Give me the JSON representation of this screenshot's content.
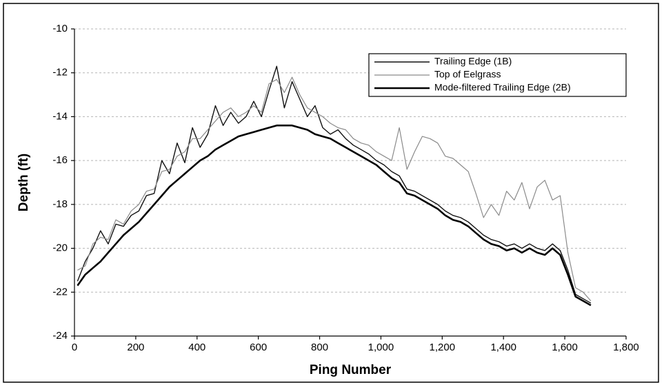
{
  "chart_data": {
    "type": "line",
    "xlabel": "Ping Number",
    "ylabel": "Depth (ft)",
    "xlim": [
      0,
      1800
    ],
    "ylim": [
      -24,
      -10
    ],
    "xticks": [
      0,
      200,
      400,
      600,
      800,
      {
        "value": 1000,
        "label": "1,000"
      },
      {
        "value": 1200,
        "label": "1,200"
      },
      {
        "value": 1400,
        "label": "1,400"
      },
      {
        "value": 1600,
        "label": "1,600"
      },
      {
        "value": 1800,
        "label": "1,800"
      }
    ],
    "yticks": [
      -24,
      -22,
      -20,
      -18,
      -16,
      -14,
      -12,
      -10
    ],
    "grid": true,
    "legend": "upper right",
    "x": [
      10,
      35,
      60,
      85,
      110,
      135,
      160,
      185,
      210,
      235,
      260,
      285,
      310,
      335,
      360,
      385,
      410,
      435,
      460,
      485,
      510,
      535,
      560,
      585,
      610,
      635,
      660,
      685,
      710,
      735,
      760,
      785,
      810,
      835,
      860,
      885,
      910,
      935,
      960,
      985,
      1010,
      1035,
      1060,
      1085,
      1110,
      1135,
      1160,
      1185,
      1210,
      1235,
      1260,
      1285,
      1310,
      1335,
      1360,
      1385,
      1410,
      1435,
      1460,
      1485,
      1510,
      1535,
      1560,
      1585,
      1610,
      1635,
      1660,
      1685
    ],
    "series": [
      {
        "name": "Trailing Edge (1B)",
        "color": "#111111",
        "width": 1.4,
        "values": [
          -21.5,
          -20.6,
          -20.0,
          -19.2,
          -19.8,
          -18.9,
          -19.0,
          -18.5,
          -18.3,
          -17.6,
          -17.5,
          -16.0,
          -16.6,
          -15.2,
          -16.1,
          -14.5,
          -15.4,
          -14.8,
          -13.5,
          -14.4,
          -13.8,
          -14.3,
          -14.0,
          -13.3,
          -14.0,
          -12.8,
          -11.7,
          -13.6,
          -12.4,
          -13.2,
          -14.0,
          -13.5,
          -14.5,
          -14.8,
          -14.6,
          -15.0,
          -15.3,
          -15.5,
          -15.7,
          -16.0,
          -16.2,
          -16.5,
          -16.7,
          -17.3,
          -17.4,
          -17.6,
          -17.8,
          -18.0,
          -18.3,
          -18.5,
          -18.6,
          -18.8,
          -19.1,
          -19.4,
          -19.6,
          -19.7,
          -19.9,
          -19.8,
          -20.0,
          -19.8,
          -20.0,
          -20.1,
          -19.8,
          -20.1,
          -21.0,
          -22.1,
          -22.3,
          -22.5
        ]
      },
      {
        "name": "Top of Eelgrass",
        "color": "#8a8a8a",
        "width": 1.2,
        "values": [
          -21.0,
          -20.8,
          -19.8,
          -19.5,
          -19.6,
          -18.7,
          -18.9,
          -18.3,
          -18.0,
          -17.4,
          -17.3,
          -16.5,
          -16.4,
          -15.8,
          -15.6,
          -15.0,
          -15.0,
          -14.6,
          -14.2,
          -13.8,
          -13.6,
          -14.0,
          -13.8,
          -13.5,
          -13.8,
          -12.5,
          -12.3,
          -12.9,
          -12.2,
          -13.0,
          -13.6,
          -13.8,
          -14.0,
          -14.3,
          -14.5,
          -14.6,
          -15.0,
          -15.2,
          -15.3,
          -15.6,
          -15.8,
          -16.0,
          -14.5,
          -16.4,
          -15.6,
          -14.9,
          -15.0,
          -15.2,
          -15.8,
          -15.9,
          -16.2,
          -16.5,
          -17.5,
          -18.6,
          -18.0,
          -18.5,
          -17.4,
          -17.8,
          -17.0,
          -18.2,
          -17.2,
          -16.9,
          -17.8,
          -17.6,
          -20.2,
          -21.8,
          -22.0,
          -22.4
        ]
      },
      {
        "name": "Mode-filtered Trailing Edge (2B)",
        "color": "#000000",
        "width": 2.6,
        "values": [
          -21.7,
          -21.2,
          -20.9,
          -20.6,
          -20.2,
          -19.8,
          -19.4,
          -19.1,
          -18.8,
          -18.4,
          -18.0,
          -17.6,
          -17.2,
          -16.9,
          -16.6,
          -16.3,
          -16.0,
          -15.8,
          -15.5,
          -15.3,
          -15.1,
          -14.9,
          -14.8,
          -14.7,
          -14.6,
          -14.5,
          -14.4,
          -14.4,
          -14.4,
          -14.5,
          -14.6,
          -14.8,
          -14.9,
          -15.0,
          -15.2,
          -15.4,
          -15.6,
          -15.8,
          -16.0,
          -16.2,
          -16.5,
          -16.8,
          -17.0,
          -17.5,
          -17.6,
          -17.8,
          -18.0,
          -18.2,
          -18.5,
          -18.7,
          -18.8,
          -19.0,
          -19.3,
          -19.6,
          -19.8,
          -19.9,
          -20.1,
          -20.0,
          -20.2,
          -20.0,
          -20.2,
          -20.3,
          -20.0,
          -20.3,
          -21.2,
          -22.2,
          -22.4,
          -22.6
        ]
      }
    ]
  }
}
